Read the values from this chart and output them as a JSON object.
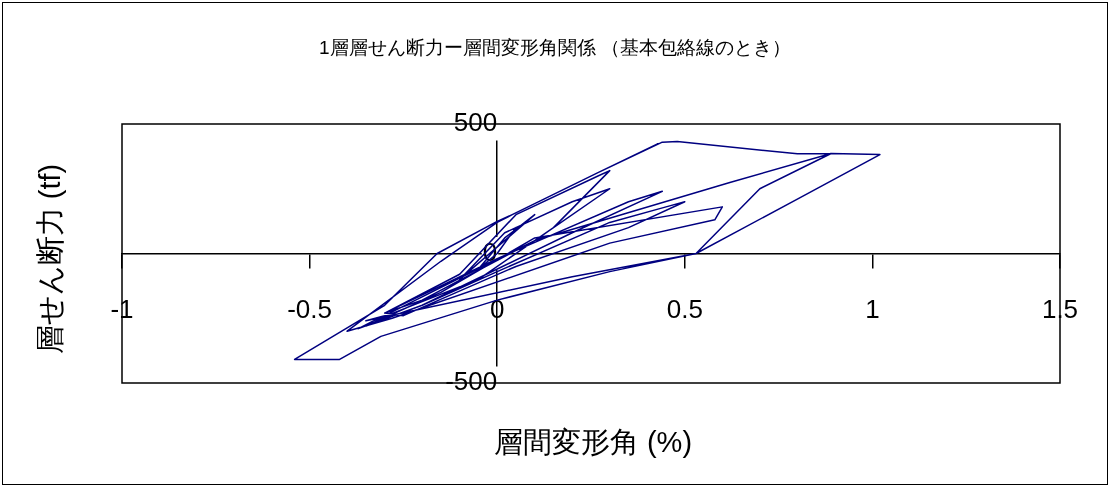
{
  "chart_data": {
    "type": "line",
    "title": "1層層せん断力ー層間変形角関係 （基本包絡線のとき）",
    "xlabel": "層間変形角 (%)",
    "ylabel": "層せん断力 (tf)",
    "xlim": [
      -1,
      1.5
    ],
    "xticks": [
      -1,
      -0.5,
      0,
      0.5,
      1,
      1.5
    ],
    "ylim": [
      -500,
      500
    ],
    "yticks": [
      -500,
      0,
      500
    ],
    "grid": false,
    "legend": false,
    "marker": "none",
    "line_style": "solid",
    "series": [
      {
        "color": "#000080",
        "x": [
          0,
          0.05,
          0,
          -0.05,
          0.02,
          0.1,
          -0.1,
          0.02,
          0.2,
          0.3,
          0.1,
          -0.2,
          -0.3,
          -0.1,
          0.05,
          0.27,
          0.3,
          0.15,
          -0.05,
          -0.33,
          -0.37,
          -0.2,
          0,
          0.3,
          0.45,
          0.5,
          0.35,
          0.05,
          -0.25,
          -0.3,
          0,
          0.35,
          0.44,
          0.2,
          -0.2,
          -0.35,
          -0.15,
          0.1,
          0.6,
          0.58,
          0.3,
          -0.28,
          -0.4,
          -0.15,
          0,
          0.04,
          0.27,
          0.44,
          0.48,
          0.8,
          0.89,
          0.7,
          0.53,
          0.2,
          -0.35,
          -0.3,
          0.1,
          0.62,
          0.89,
          1.02,
          0.8,
          0.53,
          0.3,
          0,
          -0.31,
          -0.42,
          -0.54,
          -0.3,
          -0.16,
          0,
          0.04,
          0.27,
          0.43
        ],
        "values": [
          0,
          100,
          0,
          -60,
          60,
          150,
          -100,
          80,
          200,
          250,
          50,
          -180,
          -230,
          -80,
          150,
          300,
          320,
          100,
          -100,
          -260,
          -290,
          -200,
          -70,
          120,
          180,
          200,
          100,
          -50,
          -240,
          -230,
          -20,
          200,
          240,
          80,
          -200,
          -280,
          -150,
          60,
          180,
          130,
          40,
          -250,
          -300,
          -30,
          120,
          150,
          313,
          430,
          432,
          385,
          386,
          250,
          0,
          -90,
          -260,
          -240,
          50,
          274,
          386,
          382,
          210,
          0,
          -70,
          -180,
          -320,
          -409,
          -409,
          -200,
          0,
          124,
          150,
          313,
          425
        ]
      }
    ]
  }
}
